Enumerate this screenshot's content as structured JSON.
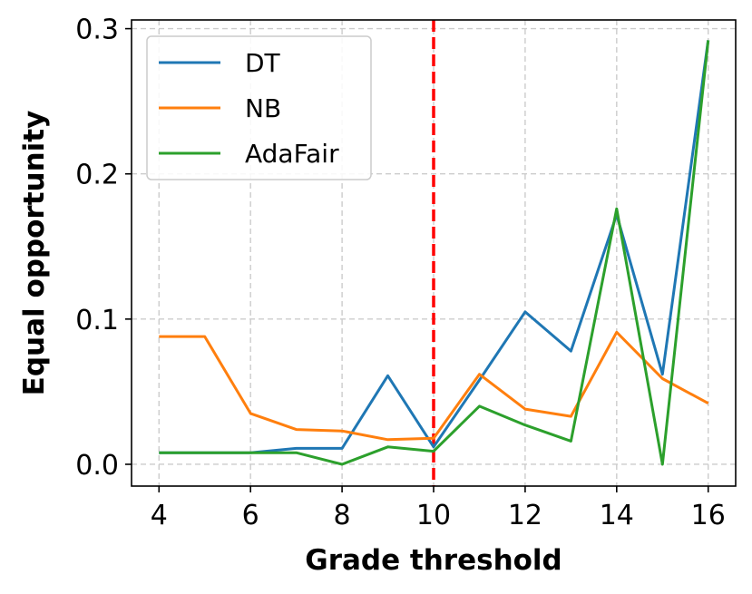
{
  "chart_data": {
    "type": "line",
    "xlabel": "Grade threshold",
    "ylabel": "Equal opportunity",
    "xlim": [
      3.4,
      16.6
    ],
    "ylim": [
      -0.015,
      0.306
    ],
    "xticks": [
      4,
      6,
      8,
      10,
      12,
      14,
      16
    ],
    "yticks": [
      0.0,
      0.1,
      0.2,
      0.3
    ],
    "ytick_labels": [
      "0.0",
      "0.1",
      "0.2",
      "0.3"
    ],
    "grid": true,
    "legend_position": "upper-left",
    "vline": {
      "x": 10,
      "color": "#ff0000",
      "style": "dashed"
    },
    "x": [
      4,
      5,
      6,
      7,
      8,
      9,
      10,
      11,
      12,
      13,
      14,
      15,
      16
    ],
    "series": [
      {
        "name": "DT",
        "color": "#1f77b4",
        "values": [
          0.008,
          0.008,
          0.008,
          0.011,
          0.011,
          0.061,
          0.012,
          0.058,
          0.105,
          0.078,
          0.172,
          0.062,
          0.292
        ]
      },
      {
        "name": "NB",
        "color": "#ff7f0e",
        "values": [
          0.088,
          0.088,
          0.035,
          0.024,
          0.023,
          0.017,
          0.018,
          0.062,
          0.038,
          0.033,
          0.091,
          0.059,
          0.042
        ]
      },
      {
        "name": "AdaFair",
        "color": "#2ca02c",
        "values": [
          0.008,
          0.008,
          0.008,
          0.008,
          0.0,
          0.012,
          0.009,
          0.04,
          0.027,
          0.016,
          0.176,
          0.0,
          0.292
        ]
      }
    ]
  }
}
